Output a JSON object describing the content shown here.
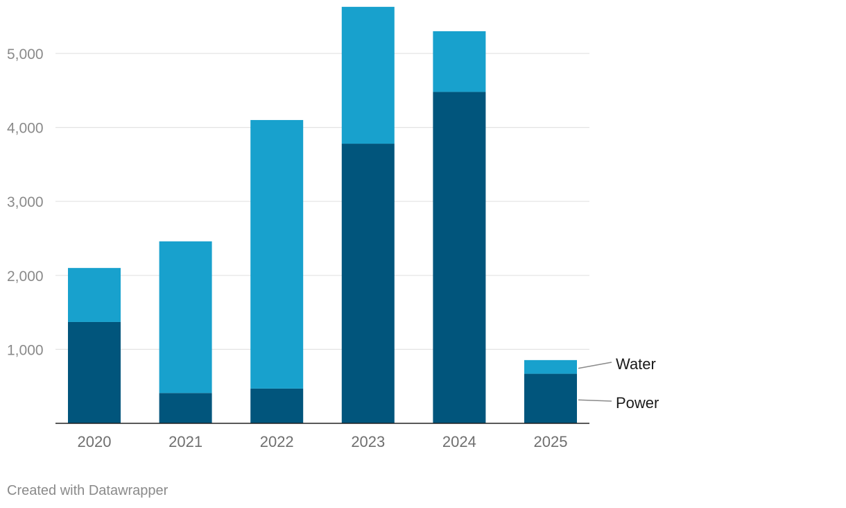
{
  "chart_data": {
    "type": "bar",
    "stacked": true,
    "categories": [
      "2020",
      "2021",
      "2022",
      "2023",
      "2024",
      "2025"
    ],
    "series": [
      {
        "name": "Power",
        "values": [
          1370,
          410,
          470,
          3780,
          4480,
          670
        ],
        "color": "#01557c"
      },
      {
        "name": "Water",
        "values": [
          730,
          2050,
          3630,
          1850,
          820,
          185
        ],
        "color": "#18a1cd"
      }
    ],
    "title": "",
    "xlabel": "",
    "ylabel": "",
    "ylim": [
      0,
      5600
    ],
    "yticks": [
      {
        "value": 1000,
        "label": "1,000"
      },
      {
        "value": 2000,
        "label": "2,000"
      },
      {
        "value": 3000,
        "label": "3,000"
      },
      {
        "value": 4000,
        "label": "4,000"
      },
      {
        "value": 5000,
        "label": "5,000"
      }
    ],
    "grid": true,
    "legend": "direct labels right of last bar"
  },
  "footer": {
    "credit": "Created with Datawrapper"
  }
}
